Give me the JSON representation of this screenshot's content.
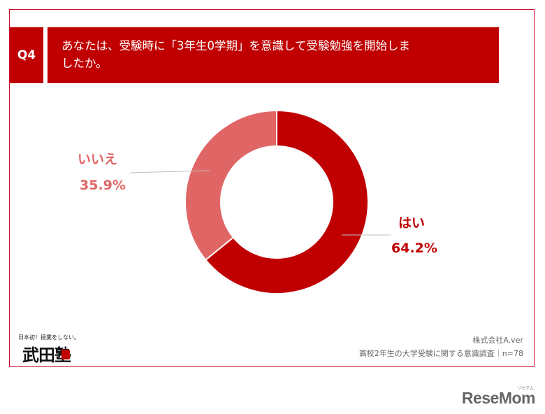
{
  "question": {
    "tag": "Q4",
    "text_line1": "あなたは、受験時に「3年生0学期」を意識して受験勉強を開始しま",
    "text_line2": "したか。"
  },
  "chart_data": {
    "type": "pie",
    "variant": "donut",
    "title": "",
    "slices": [
      {
        "label": "はい",
        "value": 64.2,
        "value_label": "64.2%",
        "color": "#c00000"
      },
      {
        "label": "いいえ",
        "value": 35.9,
        "value_label": "35.9%",
        "color": "#e06666"
      }
    ]
  },
  "footer": {
    "company": "株式会社A.ver",
    "survey": "高校2年生の大学受験に関する意識調査｜n=78"
  },
  "logo": {
    "tagline": "日本初！授業をしない。",
    "name": "武田塾"
  },
  "watermark": {
    "text": "ReseMom",
    "kana": "リセマム"
  },
  "colors": {
    "accent": "#c00000",
    "secondary": "#e06666",
    "frame": "#c8102e"
  }
}
